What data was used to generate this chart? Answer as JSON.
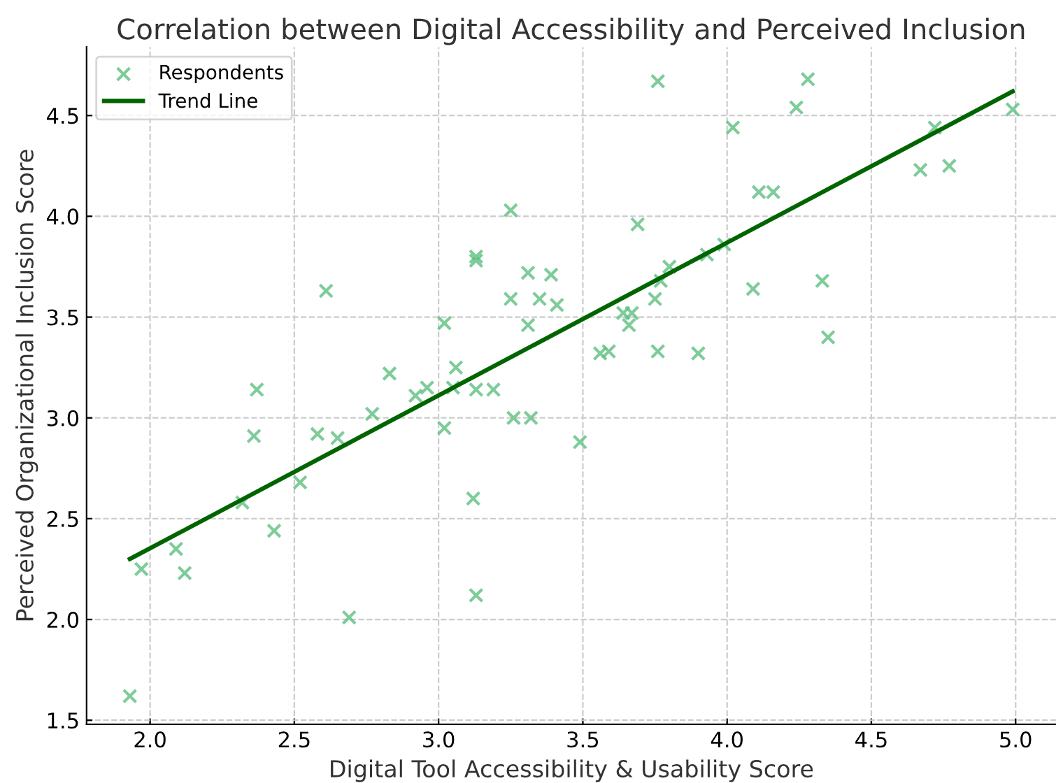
{
  "chart_data": {
    "type": "scatter",
    "title": "Correlation between Digital Accessibility and Perceived Inclusion",
    "xlabel": "Digital Tool Accessibility & Usability Score",
    "ylabel": "Perceived Organizational Inclusion Score",
    "xlim": [
      1.78,
      5.14
    ],
    "ylim": [
      1.48,
      4.84
    ],
    "xticks": [
      {
        "value": 2,
        "label": "2.0"
      },
      2.5,
      {
        "value": 3,
        "label": "3.0"
      },
      3.5,
      {
        "value": 4,
        "label": "4.0"
      },
      4.5,
      {
        "value": 5,
        "label": "5.0"
      }
    ],
    "yticks": [
      1.5,
      {
        "value": 2,
        "label": "2.0"
      },
      2.5,
      {
        "value": 3,
        "label": "3.0"
      },
      3.5,
      {
        "value": 4,
        "label": "4.0"
      },
      4.5
    ],
    "grid": true,
    "legend": "top left",
    "series": [
      {
        "name": "Respondents",
        "marker": "cross",
        "color": "#5cbf7f",
        "x": [
          1.93,
          1.97,
          2.09,
          2.12,
          2.32,
          2.36,
          2.37,
          2.43,
          2.52,
          2.58,
          2.61,
          2.65,
          2.69,
          2.77,
          2.83,
          2.92,
          2.96,
          3.02,
          3.02,
          3.05,
          3.06,
          3.12,
          3.13,
          3.13,
          3.13,
          3.13,
          3.19,
          3.25,
          3.26,
          3.25,
          3.31,
          3.31,
          3.32,
          3.35,
          3.39,
          3.41,
          3.49,
          3.76,
          4.02,
          4.24,
          4.28,
          4.99,
          4.72,
          4.67,
          4.77,
          4.11,
          4.16,
          3.69,
          3.99,
          3.93,
          3.8,
          3.77,
          3.75,
          3.64,
          3.67,
          3.66,
          4.33,
          4.09,
          3.56,
          3.59,
          3.76,
          3.9,
          4.35
        ],
        "values": [
          1.62,
          2.25,
          2.35,
          2.23,
          2.58,
          2.91,
          3.14,
          2.44,
          2.68,
          2.92,
          3.63,
          2.9,
          2.01,
          3.02,
          3.22,
          3.11,
          3.15,
          3.47,
          2.95,
          3.15,
          3.25,
          2.6,
          2.12,
          3.8,
          3.78,
          3.14,
          3.14,
          4.03,
          3.0,
          3.59,
          3.72,
          3.46,
          3.0,
          3.59,
          3.71,
          3.56,
          2.88,
          4.67,
          4.44,
          4.54,
          4.68,
          4.53,
          4.44,
          4.23,
          4.25,
          4.12,
          4.12,
          3.96,
          3.86,
          3.81,
          3.75,
          3.68,
          3.59,
          3.52,
          3.52,
          3.46,
          3.68,
          3.64,
          3.32,
          3.33,
          3.33,
          3.32,
          3.4
        ]
      },
      {
        "name": "Trend Line",
        "type": "line",
        "color": "#006400",
        "line_style": "solid",
        "x": [
          1.93,
          4.99
        ],
        "values": [
          2.3,
          4.62
        ]
      }
    ]
  }
}
